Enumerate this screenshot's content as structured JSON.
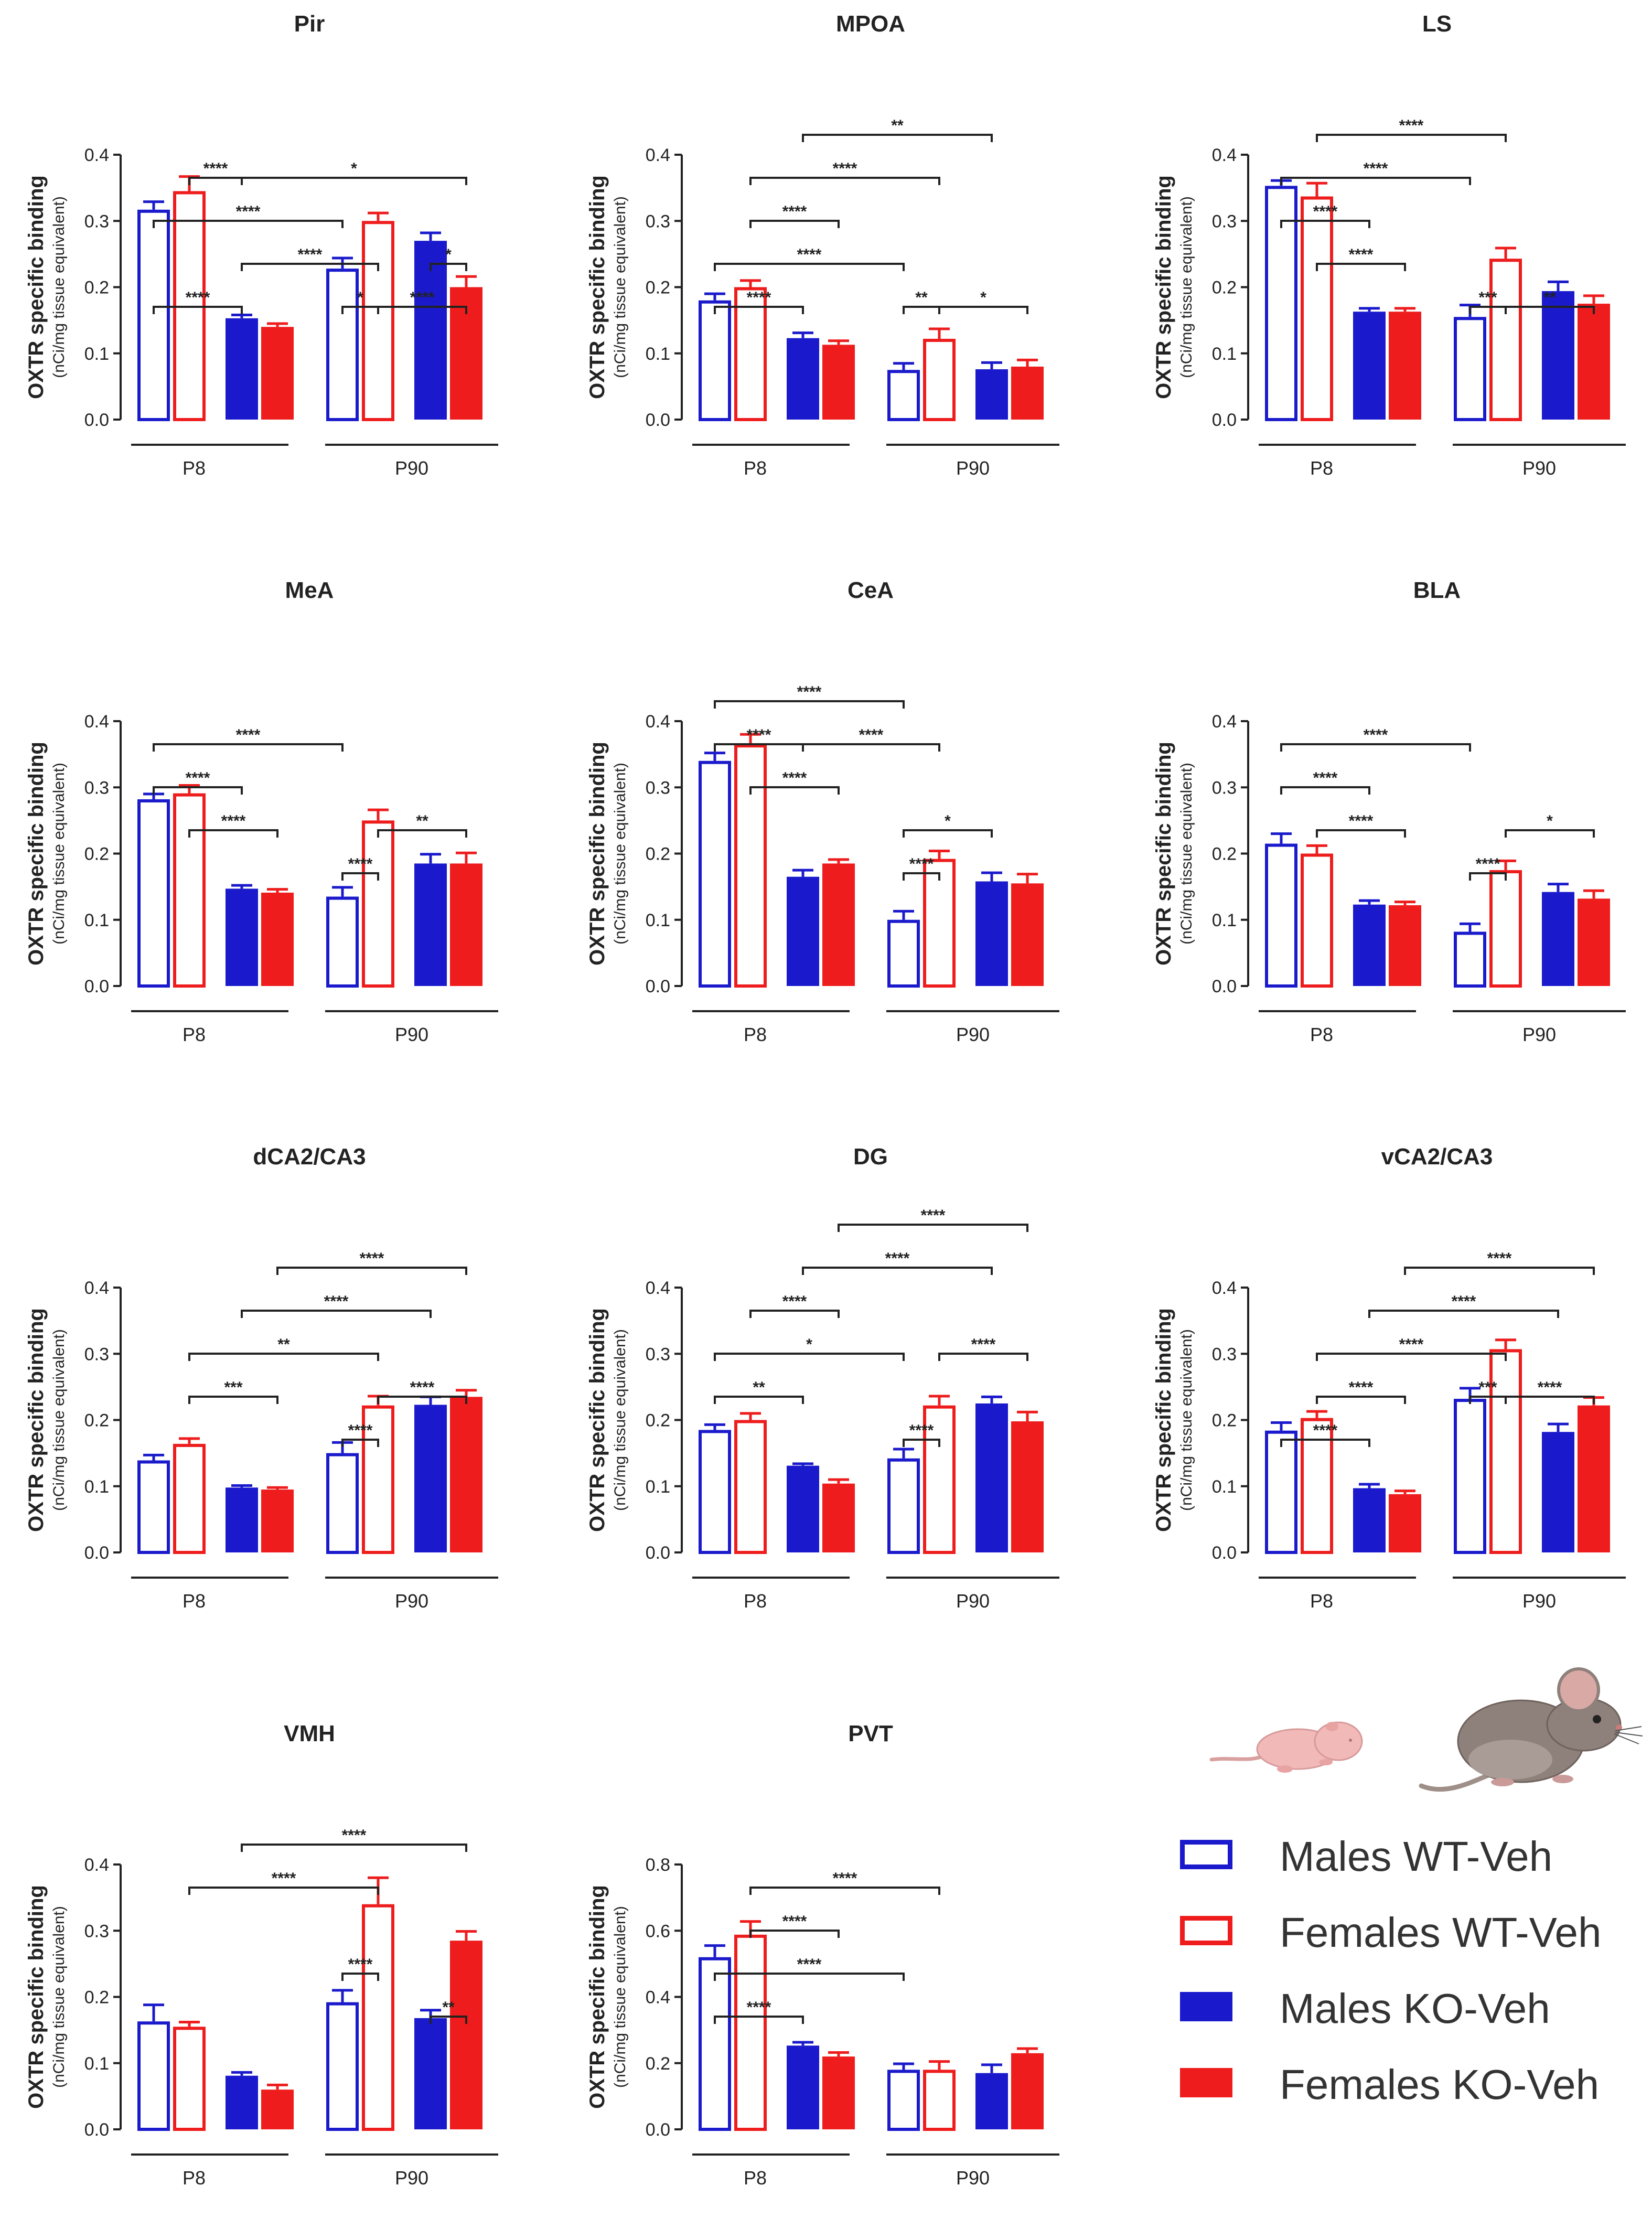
{
  "colors": {
    "male": "#1a1acc",
    "female": "#ee1c1c",
    "axis": "#222222"
  },
  "y_axis_label": "OXTR specific binding",
  "y_axis_unit": "(nCi/mg tissue equivalent)",
  "group_labels": [
    "P8",
    "P90"
  ],
  "legend": [
    {
      "label": "Males WT-Veh",
      "sex": "male",
      "filled": false
    },
    {
      "label": "Females WT-Veh",
      "sex": "female",
      "filled": false
    },
    {
      "label": "Males KO-Veh",
      "sex": "male",
      "filled": true
    },
    {
      "label": "Females KO-Veh",
      "sex": "female",
      "filled": true
    }
  ],
  "illustration": [
    "neonatal-pup-icon",
    "adult-mouse-icon"
  ],
  "chart_data": [
    {
      "type": "bar",
      "title": "Pir",
      "ylim": [
        0,
        0.4
      ],
      "yticks": [
        "0.0",
        "0.1",
        "0.2",
        "0.3",
        "0.4"
      ],
      "categories": [
        "P8",
        "P90"
      ],
      "series": [
        {
          "name": "Males WT-Veh",
          "values": [
            0.317,
            0.228
          ],
          "errors": [
            0.012,
            0.016
          ]
        },
        {
          "name": "Females WT-Veh",
          "values": [
            0.345,
            0.3
          ],
          "errors": [
            0.022,
            0.012
          ]
        },
        {
          "name": "Males KO-Veh",
          "values": [
            0.153,
            0.27
          ],
          "errors": [
            0.005,
            0.012
          ]
        },
        {
          "name": "Females KO-Veh",
          "values": [
            0.14,
            0.2
          ],
          "errors": [
            0.005,
            0.016
          ]
        }
      ],
      "significance": [
        {
          "from": 0,
          "to": 2,
          "level": 1,
          "label": "****"
        },
        {
          "from": 4,
          "to": 5,
          "level": 1,
          "label": "*"
        },
        {
          "from": 5,
          "to": 7,
          "level": 1,
          "label": "****"
        },
        {
          "from": 2,
          "to": 5,
          "level": 2,
          "label": "****"
        },
        {
          "from": 6,
          "to": 7,
          "level": 2,
          "label": "*"
        },
        {
          "from": 0,
          "to": 4,
          "level": 3,
          "label": "****"
        },
        {
          "from": 1,
          "to": 2,
          "level": 4,
          "label": "****"
        },
        {
          "from": 2,
          "to": 7,
          "level": 4,
          "label": "*"
        }
      ]
    },
    {
      "type": "bar",
      "title": "MPOA",
      "ylim": [
        0,
        0.4
      ],
      "yticks": [
        "0.0",
        "0.1",
        "0.2",
        "0.3",
        "0.4"
      ],
      "categories": [
        "P8",
        "P90"
      ],
      "series": [
        {
          "name": "Males WT-Veh",
          "values": [
            0.18,
            0.075
          ],
          "errors": [
            0.01,
            0.01
          ]
        },
        {
          "name": "Females WT-Veh",
          "values": [
            0.2,
            0.122
          ],
          "errors": [
            0.01,
            0.015
          ]
        },
        {
          "name": "Males KO-Veh",
          "values": [
            0.123,
            0.076
          ],
          "errors": [
            0.008,
            0.01
          ]
        },
        {
          "name": "Females KO-Veh",
          "values": [
            0.113,
            0.08
          ],
          "errors": [
            0.006,
            0.01
          ]
        }
      ],
      "significance": [
        {
          "from": 0,
          "to": 2,
          "level": 1,
          "label": "****"
        },
        {
          "from": 4,
          "to": 5,
          "level": 1,
          "label": "**"
        },
        {
          "from": 5,
          "to": 7,
          "level": 1,
          "label": "*"
        },
        {
          "from": 0,
          "to": 4,
          "level": 2,
          "label": "****"
        },
        {
          "from": 1,
          "to": 3,
          "level": 3,
          "label": "****"
        },
        {
          "from": 1,
          "to": 5,
          "level": 4,
          "label": "****"
        },
        {
          "from": 2,
          "to": 6,
          "level": 5,
          "label": "**"
        }
      ]
    },
    {
      "type": "bar",
      "title": "LS",
      "ylim": [
        0,
        0.4
      ],
      "yticks": [
        "0.0",
        "0.1",
        "0.2",
        "0.3",
        "0.4"
      ],
      "categories": [
        "P8",
        "P90"
      ],
      "series": [
        {
          "name": "Males WT-Veh",
          "values": [
            0.353,
            0.155
          ],
          "errors": [
            0.008,
            0.018
          ]
        },
        {
          "name": "Females WT-Veh",
          "values": [
            0.337,
            0.243
          ],
          "errors": [
            0.02,
            0.016
          ]
        },
        {
          "name": "Males KO-Veh",
          "values": [
            0.163,
            0.194
          ],
          "errors": [
            0.005,
            0.014
          ]
        },
        {
          "name": "Females KO-Veh",
          "values": [
            0.163,
            0.175
          ],
          "errors": [
            0.005,
            0.012
          ]
        }
      ],
      "significance": [
        {
          "from": 4,
          "to": 5,
          "level": 1,
          "label": "***"
        },
        {
          "from": 5,
          "to": 7,
          "level": 1,
          "label": "**"
        },
        {
          "from": 1,
          "to": 3,
          "level": 2,
          "label": "****"
        },
        {
          "from": 0,
          "to": 2,
          "level": 3,
          "label": "****"
        },
        {
          "from": 0,
          "to": 4,
          "level": 4,
          "label": "****"
        },
        {
          "from": 1,
          "to": 5,
          "level": 5,
          "label": "****"
        }
      ]
    },
    {
      "type": "bar",
      "title": "MeA",
      "ylim": [
        0,
        0.4
      ],
      "yticks": [
        "0.0",
        "0.1",
        "0.2",
        "0.3",
        "0.4"
      ],
      "categories": [
        "P8",
        "P90"
      ],
      "series": [
        {
          "name": "Males WT-Veh",
          "values": [
            0.282,
            0.135
          ],
          "errors": [
            0.008,
            0.014
          ]
        },
        {
          "name": "Females WT-Veh",
          "values": [
            0.291,
            0.25
          ],
          "errors": [
            0.012,
            0.016
          ]
        },
        {
          "name": "Males KO-Veh",
          "values": [
            0.147,
            0.185
          ],
          "errors": [
            0.005,
            0.014
          ]
        },
        {
          "name": "Females KO-Veh",
          "values": [
            0.141,
            0.185
          ],
          "errors": [
            0.005,
            0.016
          ]
        }
      ],
      "significance": [
        {
          "from": 4,
          "to": 5,
          "level": 1,
          "label": "****"
        },
        {
          "from": 1,
          "to": 3,
          "level": 2,
          "label": "****"
        },
        {
          "from": 5,
          "to": 7,
          "level": 2,
          "label": "**"
        },
        {
          "from": 0,
          "to": 2,
          "level": 3,
          "label": "****"
        },
        {
          "from": 0,
          "to": 4,
          "level": 4,
          "label": "****"
        }
      ]
    },
    {
      "type": "bar",
      "title": "CeA",
      "ylim": [
        0,
        0.4
      ],
      "yticks": [
        "0.0",
        "0.1",
        "0.2",
        "0.3",
        "0.4"
      ],
      "categories": [
        "P8",
        "P90"
      ],
      "series": [
        {
          "name": "Males WT-Veh",
          "values": [
            0.34,
            0.1
          ],
          "errors": [
            0.012,
            0.013
          ]
        },
        {
          "name": "Females WT-Veh",
          "values": [
            0.365,
            0.192
          ],
          "errors": [
            0.015,
            0.012
          ]
        },
        {
          "name": "Males KO-Veh",
          "values": [
            0.165,
            0.158
          ],
          "errors": [
            0.01,
            0.013
          ]
        },
        {
          "name": "Females KO-Veh",
          "values": [
            0.185,
            0.155
          ],
          "errors": [
            0.006,
            0.014
          ]
        }
      ],
      "significance": [
        {
          "from": 4,
          "to": 5,
          "level": 1,
          "label": "****"
        },
        {
          "from": 4,
          "to": 6,
          "level": 2,
          "label": "*"
        },
        {
          "from": 1,
          "to": 3,
          "level": 3,
          "label": "****"
        },
        {
          "from": 2,
          "to": 5,
          "level": 4,
          "label": "****"
        },
        {
          "from": 0,
          "to": 2,
          "level": 4,
          "label": "****"
        },
        {
          "from": 0,
          "to": 4,
          "level": 5,
          "label": "****"
        }
      ]
    },
    {
      "type": "bar",
      "title": "BLA",
      "ylim": [
        0,
        0.4
      ],
      "yticks": [
        "0.0",
        "0.1",
        "0.2",
        "0.3",
        "0.4"
      ],
      "categories": [
        "P8",
        "P90"
      ],
      "series": [
        {
          "name": "Males WT-Veh",
          "values": [
            0.215,
            0.082
          ],
          "errors": [
            0.015,
            0.012
          ]
        },
        {
          "name": "Females WT-Veh",
          "values": [
            0.2,
            0.175
          ],
          "errors": [
            0.012,
            0.014
          ]
        },
        {
          "name": "Males KO-Veh",
          "values": [
            0.123,
            0.142
          ],
          "errors": [
            0.006,
            0.012
          ]
        },
        {
          "name": "Females KO-Veh",
          "values": [
            0.122,
            0.132
          ],
          "errors": [
            0.005,
            0.012
          ]
        }
      ],
      "significance": [
        {
          "from": 4,
          "to": 5,
          "level": 1,
          "label": "****"
        },
        {
          "from": 1,
          "to": 3,
          "level": 2,
          "label": "****"
        },
        {
          "from": 5,
          "to": 7,
          "level": 2,
          "label": "*"
        },
        {
          "from": 0,
          "to": 2,
          "level": 3,
          "label": "****"
        },
        {
          "from": 0,
          "to": 4,
          "level": 4,
          "label": "****"
        }
      ]
    },
    {
      "type": "bar",
      "title": "dCA2/CA3",
      "ylim": [
        0,
        0.4
      ],
      "yticks": [
        "0.0",
        "0.1",
        "0.2",
        "0.3",
        "0.4"
      ],
      "categories": [
        "P8",
        "P90"
      ],
      "series": [
        {
          "name": "Males WT-Veh",
          "values": [
            0.139,
            0.15
          ],
          "errors": [
            0.008,
            0.016
          ]
        },
        {
          "name": "Females WT-Veh",
          "values": [
            0.164,
            0.222
          ],
          "errors": [
            0.008,
            0.014
          ]
        },
        {
          "name": "Males KO-Veh",
          "values": [
            0.098,
            0.223
          ],
          "errors": [
            0.003,
            0.012
          ]
        },
        {
          "name": "Females KO-Veh",
          "values": [
            0.095,
            0.235
          ],
          "errors": [
            0.003,
            0.01
          ]
        }
      ],
      "significance": [
        {
          "from": 4,
          "to": 5,
          "level": 1,
          "label": "****"
        },
        {
          "from": 1,
          "to": 3,
          "level": 2,
          "label": "***"
        },
        {
          "from": 5,
          "to": 7,
          "level": 2,
          "label": "****"
        },
        {
          "from": 1,
          "to": 5,
          "level": 3,
          "label": "**"
        },
        {
          "from": 2,
          "to": 6,
          "level": 4,
          "label": "****"
        },
        {
          "from": 3,
          "to": 7,
          "level": 5,
          "label": "****"
        }
      ]
    },
    {
      "type": "bar",
      "title": "DG",
      "ylim": [
        0,
        0.4
      ],
      "yticks": [
        "0.0",
        "0.1",
        "0.2",
        "0.3",
        "0.4"
      ],
      "categories": [
        "P8",
        "P90"
      ],
      "series": [
        {
          "name": "Males WT-Veh",
          "values": [
            0.185,
            0.142
          ],
          "errors": [
            0.008,
            0.014
          ]
        },
        {
          "name": "Females WT-Veh",
          "values": [
            0.2,
            0.222
          ],
          "errors": [
            0.01,
            0.014
          ]
        },
        {
          "name": "Males KO-Veh",
          "values": [
            0.131,
            0.225
          ],
          "errors": [
            0.003,
            0.01
          ]
        },
        {
          "name": "Females KO-Veh",
          "values": [
            0.104,
            0.198
          ],
          "errors": [
            0.006,
            0.014
          ]
        }
      ],
      "significance": [
        {
          "from": 4,
          "to": 5,
          "level": 1,
          "label": "****"
        },
        {
          "from": 0,
          "to": 2,
          "level": 2,
          "label": "**"
        },
        {
          "from": 0,
          "to": 4,
          "level": 3,
          "label": "*"
        },
        {
          "from": 5,
          "to": 7,
          "level": 3,
          "label": "****"
        },
        {
          "from": 1,
          "to": 3,
          "level": 4,
          "label": "****"
        },
        {
          "from": 2,
          "to": 6,
          "level": 5,
          "label": "****"
        },
        {
          "from": 3,
          "to": 7,
          "level": 6,
          "label": "****"
        }
      ]
    },
    {
      "type": "bar",
      "title": "vCA2/CA3",
      "ylim": [
        0,
        0.4
      ],
      "yticks": [
        "0.0",
        "0.1",
        "0.2",
        "0.3",
        "0.4"
      ],
      "categories": [
        "P8",
        "P90"
      ],
      "series": [
        {
          "name": "Males WT-Veh",
          "values": [
            0.184,
            0.232
          ],
          "errors": [
            0.012,
            0.016
          ]
        },
        {
          "name": "Females WT-Veh",
          "values": [
            0.203,
            0.307
          ],
          "errors": [
            0.01,
            0.014
          ]
        },
        {
          "name": "Males KO-Veh",
          "values": [
            0.097,
            0.182
          ],
          "errors": [
            0.006,
            0.012
          ]
        },
        {
          "name": "Females KO-Veh",
          "values": [
            0.088,
            0.222
          ],
          "errors": [
            0.005,
            0.012
          ]
        }
      ],
      "significance": [
        {
          "from": 0,
          "to": 2,
          "level": 1,
          "label": "****"
        },
        {
          "from": 4,
          "to": 5,
          "level": 2,
          "label": "***"
        },
        {
          "from": 5,
          "to": 7,
          "level": 2,
          "label": "****"
        },
        {
          "from": 1,
          "to": 3,
          "level": 2,
          "label": "****"
        },
        {
          "from": 1,
          "to": 5,
          "level": 3,
          "label": "****"
        },
        {
          "from": 2,
          "to": 6,
          "level": 4,
          "label": "****"
        },
        {
          "from": 3,
          "to": 7,
          "level": 5,
          "label": "****"
        }
      ]
    },
    {
      "type": "bar",
      "title": "VMH",
      "ylim": [
        0,
        0.4
      ],
      "yticks": [
        "0.0",
        "0.1",
        "0.2",
        "0.3",
        "0.4"
      ],
      "categories": [
        "P8",
        "P90"
      ],
      "series": [
        {
          "name": "Males WT-Veh",
          "values": [
            0.163,
            0.192
          ],
          "errors": [
            0.025,
            0.018
          ]
        },
        {
          "name": "Females WT-Veh",
          "values": [
            0.155,
            0.34
          ],
          "errors": [
            0.007,
            0.04
          ]
        },
        {
          "name": "Males KO-Veh",
          "values": [
            0.081,
            0.168
          ],
          "errors": [
            0.005,
            0.012
          ]
        },
        {
          "name": "Females KO-Veh",
          "values": [
            0.06,
            0.285
          ],
          "errors": [
            0.007,
            0.014
          ]
        }
      ],
      "significance": [
        {
          "from": 6,
          "to": 7,
          "level": 1,
          "label": "**"
        },
        {
          "from": 4,
          "to": 5,
          "level": 2,
          "label": "****"
        },
        {
          "from": 1,
          "to": 5,
          "level": 4,
          "label": "****"
        },
        {
          "from": 2,
          "to": 7,
          "level": 5,
          "label": "****"
        }
      ]
    },
    {
      "type": "bar",
      "title": "PVT",
      "ylim": [
        0,
        0.8
      ],
      "yticks": [
        "0.0",
        "0.2",
        "0.4",
        "0.6",
        "0.8"
      ],
      "categories": [
        "P8",
        "P90"
      ],
      "series": [
        {
          "name": "Males WT-Veh",
          "values": [
            0.52,
            0.18
          ],
          "errors": [
            0.035,
            0.018
          ]
        },
        {
          "name": "Females WT-Veh",
          "values": [
            0.588,
            0.18
          ],
          "errors": [
            0.04,
            0.025
          ]
        },
        {
          "name": "Males KO-Veh",
          "values": [
            0.253,
            0.17
          ],
          "errors": [
            0.01,
            0.025
          ]
        },
        {
          "name": "Females KO-Veh",
          "values": [
            0.22,
            0.23
          ],
          "errors": [
            0.012,
            0.014
          ]
        }
      ],
      "significance": [
        {
          "from": 0,
          "to": 2,
          "level": 1,
          "label": "****"
        },
        {
          "from": 0,
          "to": 4,
          "level": 2,
          "label": "****"
        },
        {
          "from": 1,
          "to": 3,
          "level": 3,
          "label": "****"
        },
        {
          "from": 1,
          "to": 5,
          "level": 4,
          "label": "****"
        }
      ]
    }
  ]
}
